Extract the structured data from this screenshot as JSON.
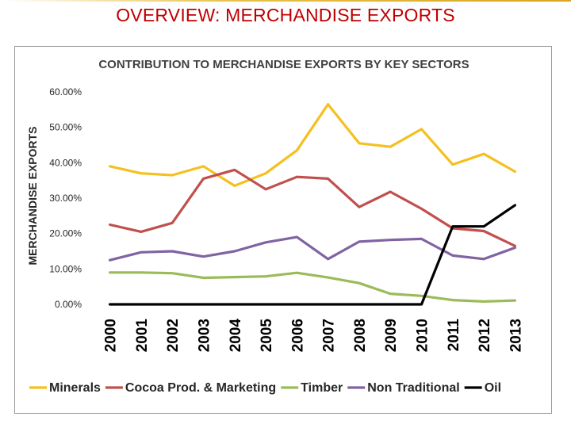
{
  "slide": {
    "title": "OVERVIEW: MERCHANDISE EXPORTS"
  },
  "chart_data": {
    "type": "line",
    "title": "CONTRIBUTION TO MERCHANDISE EXPORTS BY KEY SECTORS",
    "xlabel": "",
    "ylabel": "MERCHANDISE EXPORTS",
    "ylim": [
      0,
      60
    ],
    "yticks": [
      "0.00%",
      "10.00%",
      "20.00%",
      "30.00%",
      "40.00%",
      "50.00%",
      "60.00%"
    ],
    "grid": false,
    "legend_position": "bottom",
    "categories": [
      "2000",
      "2001",
      "2002",
      "2003",
      "2004",
      "2005",
      "2006",
      "2007",
      "2008",
      "2009",
      "2010",
      "2011",
      "2012",
      "2013"
    ],
    "series": [
      {
        "name": "Minerals",
        "color": "#f5c01f",
        "values": [
          39.0,
          37.0,
          36.5,
          39.0,
          33.5,
          37.0,
          43.5,
          56.5,
          45.5,
          44.5,
          49.5,
          39.5,
          42.5,
          37.5
        ]
      },
      {
        "name": "Cocoa Prod. & Marketing",
        "color": "#c0504d",
        "values": [
          22.5,
          20.5,
          23.0,
          35.5,
          38.0,
          32.5,
          36.0,
          35.5,
          27.5,
          31.8,
          27.0,
          21.5,
          20.7,
          16.5
        ]
      },
      {
        "name": "Timber",
        "color": "#9bbb59",
        "values": [
          9.0,
          9.0,
          8.8,
          7.5,
          7.7,
          7.9,
          8.9,
          7.6,
          6.0,
          3.0,
          2.4,
          1.2,
          0.8,
          1.1
        ]
      },
      {
        "name": "Non Traditional",
        "color": "#8064a2",
        "values": [
          12.5,
          14.7,
          15.0,
          13.5,
          15.0,
          17.5,
          19.0,
          12.8,
          17.7,
          18.2,
          18.5,
          13.8,
          12.8,
          16.0
        ]
      },
      {
        "name": "Oil",
        "color": "#000000",
        "values": [
          0,
          0,
          0,
          0,
          0,
          0,
          0,
          0,
          0,
          0,
          0,
          22.0,
          22.0,
          28.0
        ]
      }
    ]
  }
}
